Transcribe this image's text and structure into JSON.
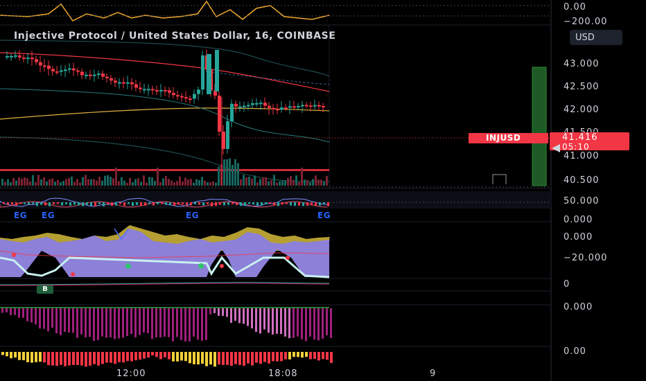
{
  "header": {
    "title": "Injective Protocol / United States Dollar, 16, COINBASE",
    "currency_button": "USD"
  },
  "price_axis": {
    "top_pane": [
      "0.00",
      "−200.00"
    ],
    "main": [
      "43.000",
      "42.500",
      "42.000",
      "41.000",
      "40.500"
    ],
    "partial_label": "41.500"
  },
  "symbol_tag": "INJUSD",
  "price_tag": {
    "price": "41.416",
    "countdown": "05:10"
  },
  "indicator_axes": {
    "pane2": [
      "50.000",
      "0.000"
    ],
    "pane3": [
      "0.000",
      "−20.000"
    ],
    "pane4": [
      "0"
    ],
    "pane5": [
      "0.000"
    ],
    "pane6": [
      "0.00"
    ]
  },
  "markers": {
    "eg_labels": [
      "EG",
      "EG",
      "EG",
      "EG"
    ],
    "b_badge": "B"
  },
  "time_axis": [
    "12:00",
    "18:08",
    "9"
  ],
  "colors": {
    "up": "#26a69a",
    "down": "#f23645",
    "price_line": "#f23645",
    "yellow_area": "#c9b037",
    "purple_area": "#8c80d9",
    "magenta": "#a0207e",
    "volume_up": "#17675f",
    "volume_down": "#7c2233"
  }
}
